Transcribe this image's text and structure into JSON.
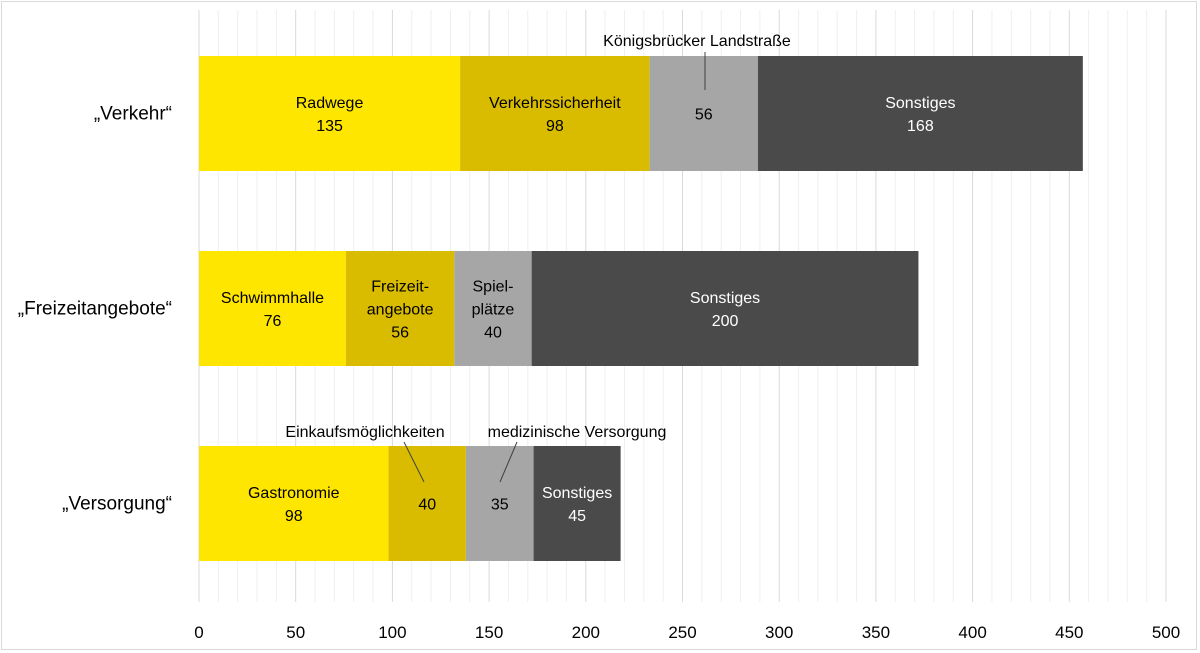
{
  "chart_data": {
    "type": "bar",
    "orientation": "horizontal",
    "stacked": true,
    "title": "",
    "xlabel": "",
    "ylabel": "",
    "xlim": [
      0,
      500
    ],
    "x_ticks": [
      "0",
      "50",
      "100",
      "150",
      "200",
      "250",
      "300",
      "350",
      "400",
      "450",
      "500"
    ],
    "grid": true,
    "legend": "none",
    "categories": [
      "„Verkehr“",
      "„Freizeitangebote“",
      "„Versorgung“"
    ],
    "colors": {
      "yellow": "#FFE600",
      "darkyellow": "#D9BC00",
      "gray": "#A6A6A6",
      "darkgray": "#4A4A4A"
    },
    "rows": [
      {
        "category": "„Verkehr“",
        "segments": [
          {
            "label": [
              "Radwege"
            ],
            "value": 135,
            "color": "yellow"
          },
          {
            "label": [
              "Verkehrssicherheit"
            ],
            "value": 98,
            "color": "darkyellow"
          },
          {
            "label": [
              "Königsbrücker Landstraße"
            ],
            "value": 56,
            "color": "gray",
            "callout": true
          },
          {
            "label": [
              "Sonstiges"
            ],
            "value": 168,
            "color": "darkgray"
          }
        ]
      },
      {
        "category": "„Freizeitangebote“",
        "segments": [
          {
            "label": [
              "Schwimmhalle"
            ],
            "value": 76,
            "color": "yellow"
          },
          {
            "label": [
              "Freizeit-",
              "angebote"
            ],
            "value": 56,
            "color": "darkyellow"
          },
          {
            "label": [
              "Spiel-",
              "plätze"
            ],
            "value": 40,
            "color": "gray"
          },
          {
            "label": [
              "Sonstiges"
            ],
            "value": 200,
            "color": "darkgray"
          }
        ]
      },
      {
        "category": "„Versorgung“",
        "segments": [
          {
            "label": [
              "Gastronomie"
            ],
            "value": 98,
            "color": "yellow"
          },
          {
            "label": [
              "Einkaufsmöglichkeiten"
            ],
            "value": 40,
            "color": "darkyellow",
            "callout": true
          },
          {
            "label": [
              "medizinische Versorgung"
            ],
            "value": 35,
            "color": "gray",
            "callout": true
          },
          {
            "label": [
              "Sonstiges"
            ],
            "value": 45,
            "color": "darkgray"
          }
        ]
      }
    ]
  }
}
